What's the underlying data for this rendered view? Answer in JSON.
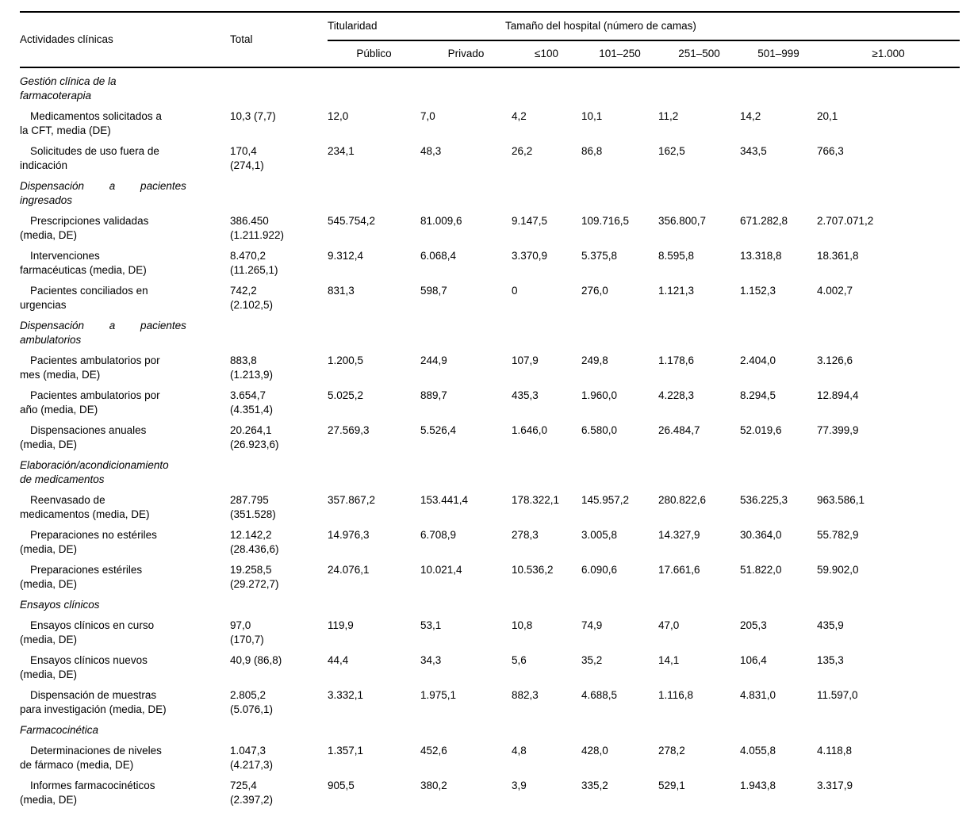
{
  "table": {
    "col_headers": {
      "activities": "Actividades clínicas",
      "total": "Total",
      "titularidad": "Titularidad",
      "tamano": "Tamaño del hospital (número de camas)",
      "sub": [
        "Público",
        "Privado",
        "≤100",
        "101–250",
        "251–500",
        "501–999",
        "≥1.000"
      ]
    },
    "rows": [
      {
        "type": "section",
        "label": "Gestión clínica de la\nfarmacoterapia"
      },
      {
        "type": "data",
        "label": "Medicamentos solicitados a\nla CFT, media (DE)",
        "total": "10,3 (7,7)",
        "values": [
          "12,0",
          "7,0",
          "4,2",
          "10,1",
          "11,2",
          "14,2",
          "20,1"
        ]
      },
      {
        "type": "data",
        "label": "Solicitudes de uso fuera de\nindicación",
        "total": "170,4\n(274,1)",
        "values": [
          "234,1",
          "48,3",
          "26,2",
          "86,8",
          "162,5",
          "343,5",
          "766,3"
        ]
      },
      {
        "type": "section",
        "justified": true,
        "label": "Dispensación a pacientes\ningresados"
      },
      {
        "type": "data",
        "label": "Prescripciones validadas\n(media, DE)",
        "total": "386.450\n(1.211.922)",
        "values": [
          "545.754,2",
          "81.009,6",
          "9.147,5",
          "109.716,5",
          "356.800,7",
          "671.282,8",
          "2.707.071,2"
        ]
      },
      {
        "type": "data",
        "label": "Intervenciones\nfarmacéuticas (media, DE)",
        "total": "8.470,2\n(11.265,1)",
        "values": [
          "9.312,4",
          "6.068,4",
          "3.370,9",
          "5.375,8",
          "8.595,8",
          "13.318,8",
          "18.361,8"
        ]
      },
      {
        "type": "data",
        "label": "Pacientes conciliados en\nurgencias",
        "total": "742,2\n(2.102,5)",
        "values": [
          "831,3",
          "598,7",
          "0",
          "276,0",
          "1.121,3",
          "1.152,3",
          "4.002,7"
        ]
      },
      {
        "type": "section",
        "justified": true,
        "label": "Dispensación a pacientes\nambulatorios"
      },
      {
        "type": "data",
        "label": "Pacientes ambulatorios por\nmes (media, DE)",
        "total": "883,8\n(1.213,9)",
        "values": [
          "1.200,5",
          "244,9",
          "107,9",
          "249,8",
          "1.178,6",
          "2.404,0",
          "3.126,6"
        ]
      },
      {
        "type": "data",
        "label": "Pacientes ambulatorios por\naño (media, DE)",
        "total": "3.654,7\n(4.351,4)",
        "values": [
          "5.025,2",
          "889,7",
          "435,3",
          "1.960,0",
          "4.228,3",
          "8.294,5",
          "12.894,4"
        ]
      },
      {
        "type": "data",
        "label": "Dispensaciones anuales\n(media, DE)",
        "total": "20.264,1\n(26.923,6)",
        "values": [
          "27.569,3",
          "5.526,4",
          "1.646,0",
          "6.580,0",
          "26.484,7",
          "52.019,6",
          "77.399,9"
        ]
      },
      {
        "type": "section",
        "label": "Elaboración/acondicionamiento\nde medicamentos"
      },
      {
        "type": "data",
        "label": "Reenvasado de\nmedicamentos (media, DE)",
        "total": "287.795\n(351.528)",
        "values": [
          "357.867,2",
          "153.441,4",
          "178.322,1",
          "145.957,2",
          "280.822,6",
          "536.225,3",
          "963.586,1"
        ]
      },
      {
        "type": "data",
        "label": "Preparaciones no estériles\n(media, DE)",
        "total": "12.142,2\n(28.436,6)",
        "values": [
          "14.976,3",
          "6.708,9",
          "278,3",
          "3.005,8",
          "14.327,9",
          "30.364,0",
          "55.782,9"
        ]
      },
      {
        "type": "data",
        "label": "Preparaciones estériles\n(media, DE)",
        "total": "19.258,5\n(29.272,7)",
        "values": [
          "24.076,1",
          "10.021,4",
          "10.536,2",
          "6.090,6",
          "17.661,6",
          "51.822,0",
          "59.902,0"
        ]
      },
      {
        "type": "section",
        "label": "Ensayos clínicos"
      },
      {
        "type": "data",
        "label": "Ensayos clínicos en curso\n(media, DE)",
        "total": "97,0\n(170,7)",
        "values": [
          "119,9",
          "53,1",
          "10,8",
          "74,9",
          "47,0",
          "205,3",
          "435,9"
        ]
      },
      {
        "type": "data",
        "label": "Ensayos clínicos nuevos\n(media, DE)",
        "total": "40,9 (86,8)",
        "values": [
          "44,4",
          "34,3",
          "5,6",
          "35,2",
          "14,1",
          "106,4",
          "135,3"
        ]
      },
      {
        "type": "data",
        "label": "Dispensación de muestras\npara investigación (media, DE)",
        "total": "2.805,2\n(5.076,1)",
        "values": [
          "3.332,1",
          "1.975,1",
          "882,3",
          "4.688,5",
          "1.116,8",
          "4.831,0",
          "11.597,0"
        ]
      },
      {
        "type": "section",
        "label": "Farmacocinética"
      },
      {
        "type": "data",
        "label": "Determinaciones de niveles\nde fármaco (media, DE)",
        "total": "1.047,3\n(4.217,3)",
        "values": [
          "1.357,1",
          "452,6",
          "4,8",
          "428,0",
          "278,2",
          "4.055,8",
          "4.118,8"
        ]
      },
      {
        "type": "data",
        "label": "Informes farmacocinéticos\n(media, DE)",
        "total": "725,4\n(2.397,2)",
        "values": [
          "905,5",
          "380,2",
          "3,9",
          "335,2",
          "529,1",
          "1.943,8",
          "3.317,9"
        ]
      }
    ]
  }
}
